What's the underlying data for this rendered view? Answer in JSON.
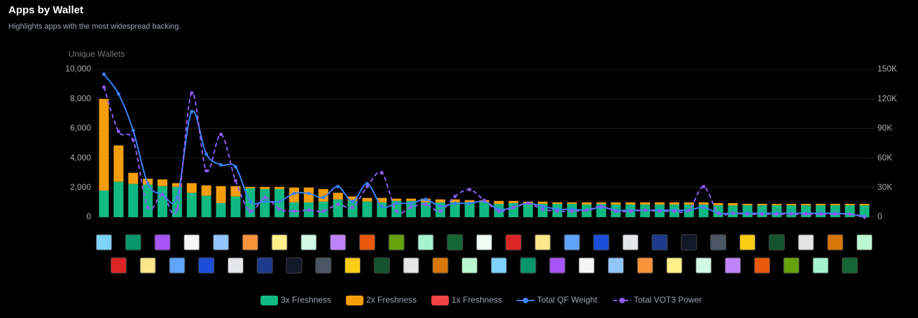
{
  "chart_data": {
    "type": "bar",
    "title": "Apps by Wallet",
    "subtitle": "Highlights apps with the most widespread backing.",
    "y_label": "Unique Wallets",
    "categories": [
      null,
      null,
      null,
      null,
      null,
      null,
      null,
      null,
      null,
      null,
      null,
      null,
      null,
      null,
      null,
      null,
      null,
      null,
      null,
      null,
      null,
      null,
      null,
      null,
      null,
      null,
      null,
      null,
      null,
      null,
      null,
      null,
      null,
      null,
      null,
      null,
      null,
      null,
      null,
      null,
      null,
      null,
      null,
      null,
      null,
      null,
      null,
      null,
      null,
      null,
      null,
      null,
      null
    ],
    "ylim": [
      0,
      10000
    ],
    "yticks": [
      0,
      {
        "value": 2000,
        "label": "2,000"
      },
      {
        "value": 4000,
        "label": "4,000"
      },
      {
        "value": 6000,
        "label": "6,000"
      },
      {
        "value": 8000,
        "label": "8,000"
      },
      {
        "value": 10000,
        "label": "10,000"
      }
    ],
    "y2lim": [
      0,
      150000
    ],
    "y2ticks": [
      0,
      {
        "value": 30000,
        "label": "30K"
      },
      {
        "value": 60000,
        "label": "60K"
      },
      {
        "value": 90000,
        "label": "90K"
      },
      {
        "value": 120000,
        "label": "120K"
      },
      {
        "value": 150000,
        "label": "150K"
      }
    ],
    "grid": true,
    "stacked": true,
    "legend": "bottom",
    "series": [
      {
        "name": "3x Freshness",
        "type": "bar",
        "color": "#10b981",
        "values": [
          1800,
          2400,
          2250,
          2200,
          2100,
          2050,
          1650,
          1450,
          950,
          1400,
          1950,
          1900,
          1900,
          1000,
          1000,
          1050,
          1200,
          1100,
          1050,
          1000,
          1100,
          1100,
          1000,
          1000,
          1000,
          1000,
          1000,
          900,
          950,
          950,
          900,
          900,
          900,
          850,
          900,
          850,
          850,
          850,
          850,
          850,
          850,
          850,
          800,
          800,
          800,
          800,
          800,
          800,
          800,
          800,
          800,
          800,
          800
        ]
      },
      {
        "name": "2x Freshness",
        "type": "bar",
        "color": "#f59e0b",
        "values": [
          6200,
          2450,
          750,
          400,
          450,
          250,
          650,
          700,
          1150,
          700,
          100,
          150,
          150,
          1000,
          1000,
          850,
          450,
          300,
          250,
          300,
          150,
          150,
          250,
          200,
          200,
          150,
          150,
          200,
          150,
          100,
          150,
          100,
          100,
          150,
          100,
          150,
          150,
          150,
          150,
          150,
          150,
          150,
          150,
          150,
          100,
          100,
          100,
          100,
          100,
          100,
          100,
          100,
          100
        ]
      },
      {
        "name": "1x Freshness",
        "type": "bar",
        "color": "#ef4444",
        "values": [
          0,
          0,
          0,
          0,
          0,
          0,
          0,
          0,
          0,
          0,
          0,
          0,
          0,
          0,
          0,
          0,
          0,
          0,
          0,
          0,
          0,
          0,
          0,
          0,
          0,
          0,
          0,
          0,
          0,
          0,
          0,
          0,
          0,
          0,
          0,
          0,
          0,
          0,
          0,
          0,
          0,
          0,
          0,
          0,
          0,
          0,
          0,
          0,
          0,
          0,
          0,
          0,
          0
        ]
      },
      {
        "name": "Total QF Weight",
        "type": "line",
        "axis": "y2",
        "color": "#3b82f6",
        "line_style": "solid",
        "values": [
          145000,
          125000,
          88000,
          34000,
          23000,
          20000,
          107000,
          64000,
          53000,
          51000,
          16000,
          16000,
          16000,
          24000,
          24000,
          20000,
          31000,
          16000,
          34000,
          11000,
          14000,
          14000,
          18000,
          11000,
          14000,
          14000,
          16000,
          8000,
          10000,
          14000,
          11000,
          8000,
          8000,
          7000,
          10000,
          7000,
          7000,
          7000,
          7000,
          7000,
          7000,
          10000,
          4000,
          4000,
          4000,
          4000,
          4000,
          4000,
          4000,
          4000,
          4000,
          3000,
          1000
        ]
      },
      {
        "name": "Total VOT3 Power",
        "type": "line",
        "axis": "y2",
        "color": "#8b5cf6",
        "line_style": "dashed",
        "values": [
          132000,
          87000,
          78000,
          10000,
          23000,
          8000,
          126000,
          47000,
          84000,
          37000,
          6000,
          20000,
          8000,
          6000,
          7000,
          6000,
          13000,
          10000,
          31000,
          45000,
          6000,
          10000,
          13000,
          6000,
          21000,
          28000,
          17000,
          6000,
          10000,
          14000,
          8000,
          6000,
          6000,
          7000,
          11000,
          6000,
          6000,
          7000,
          6000,
          6000,
          7000,
          31000,
          4000,
          4000,
          3000,
          3000,
          3000,
          3000,
          3000,
          3000,
          3000,
          3000,
          0
        ]
      }
    ]
  }
}
